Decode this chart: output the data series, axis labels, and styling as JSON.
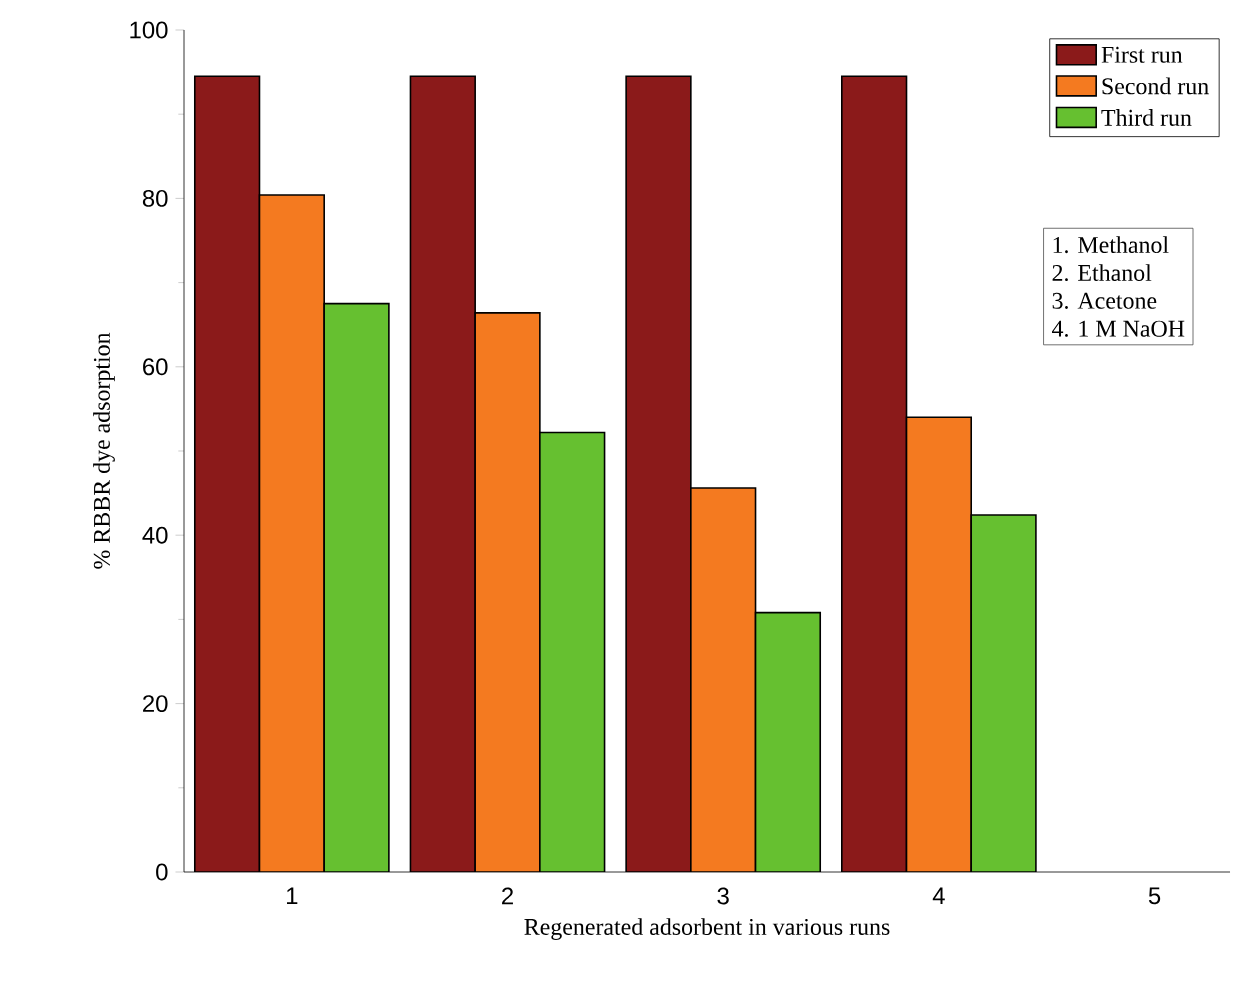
{
  "chart_data": {
    "type": "bar",
    "xlabel": "Regenerated adsorbent in various runs",
    "ylabel": "% RBBR dye adsorption",
    "categories": [
      "1",
      "2",
      "3",
      "4",
      "5"
    ],
    "series": [
      {
        "name": "First run",
        "color": "#8b1a1a",
        "values": [
          94.5,
          94.5,
          94.5,
          94.5,
          null
        ]
      },
      {
        "name": "Second run",
        "color": "#f47a20",
        "values": [
          80.4,
          66.4,
          45.6,
          54.0,
          null
        ]
      },
      {
        "name": "Third run",
        "color": "#66c030",
        "values": [
          67.5,
          52.2,
          30.8,
          42.4,
          null
        ]
      }
    ],
    "ylim": [
      0,
      100
    ],
    "yticks": [
      0,
      20,
      40,
      60,
      80,
      100
    ],
    "legend": "top right",
    "annotations": [
      "1. Methanol",
      "2. Ethanol",
      "3. Acetone",
      "4. 1 M NaOH"
    ]
  }
}
